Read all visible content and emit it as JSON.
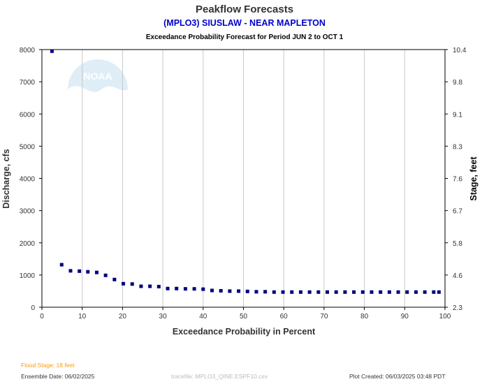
{
  "chart_data": {
    "type": "scatter",
    "title": "Peakflow Forecasts",
    "subtitle": "(MPLO3) SIUSLAW - NEAR MAPLETON",
    "subtitle2": "Exceedance Probability Forecast for Period JUN 2 to OCT 1",
    "xlabel": "Exceedance Probability in Percent",
    "ylabel": "Discharge, cfs",
    "ylabel_right": "Stage, feet",
    "xlim": [
      0,
      100
    ],
    "ylim": [
      0,
      8000
    ],
    "x_ticks": [
      "0",
      "10",
      "20",
      "30",
      "40",
      "50",
      "60",
      "70",
      "80",
      "90",
      "100"
    ],
    "y_ticks": [
      "0",
      "1000",
      "2000",
      "3000",
      "4000",
      "5000",
      "6000",
      "7000",
      "8000"
    ],
    "y_right_ticks": [
      "2.3",
      "4.6",
      "5.8",
      "6.7",
      "7.6",
      "8.3",
      "9.1",
      "9.8",
      "10.4"
    ],
    "grid": "vertical",
    "marker_color": "#000080",
    "x": [
      2.5,
      4.9,
      7.1,
      9.3,
      11.4,
      13.6,
      15.8,
      18.0,
      20.2,
      22.4,
      24.6,
      26.8,
      29.0,
      31.2,
      33.4,
      35.6,
      37.8,
      40.0,
      42.2,
      44.4,
      46.6,
      48.8,
      51.0,
      53.2,
      55.4,
      57.6,
      59.8,
      62.0,
      64.2,
      66.4,
      68.6,
      70.8,
      73.0,
      75.2,
      77.4,
      79.6,
      81.8,
      84.0,
      86.2,
      88.4,
      90.6,
      92.8,
      95.0,
      97.2,
      98.5
    ],
    "y": [
      7950,
      1320,
      1130,
      1120,
      1100,
      1080,
      990,
      860,
      730,
      720,
      650,
      650,
      640,
      580,
      580,
      570,
      570,
      560,
      520,
      510,
      500,
      500,
      490,
      480,
      480,
      470,
      470,
      470,
      470,
      470,
      470,
      470,
      470,
      470,
      470,
      470,
      470,
      470,
      470,
      470,
      470,
      470,
      470,
      470,
      470
    ]
  },
  "logo_text": "NOAA",
  "footer": {
    "flood_stage": "Flood Stage: 18 feet",
    "ensemble_date": "Ensemble Date: 06/02/2025",
    "tracefile": "tracefile: MPLO3_QINE.ESPF10.csv",
    "plot_created": "Plot Created: 06/03/2025 03:48 PDT"
  },
  "colors": {
    "title": "#333333",
    "subtitle": "#0000cc",
    "flood_stage": "#ff9900",
    "grid": "#c8c8c8"
  }
}
